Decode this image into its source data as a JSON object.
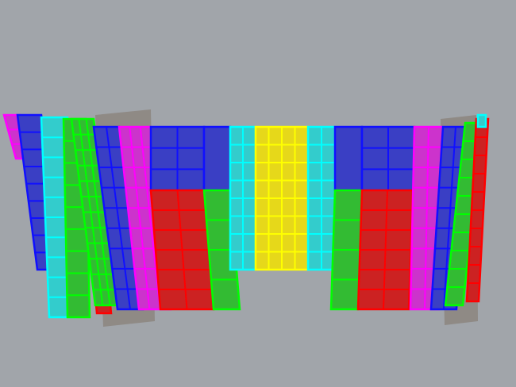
{
  "viewport": {
    "background": "#a1a5aa",
    "colors": {
      "blue": "#3a3fc4",
      "blue_edge": "#1010ff",
      "magenta": "#cc33cc",
      "magenta_edge": "#ff00ff",
      "red": "#cc2222",
      "red_edge": "#ff0000",
      "green": "#33bb33",
      "green_edge": "#00ff00",
      "cyan": "#33cccc",
      "cyan_edge": "#00ffff",
      "yellow": "#e6d81a",
      "yellow_edge": "#ffff00",
      "backing": "#8f8a85"
    }
  }
}
